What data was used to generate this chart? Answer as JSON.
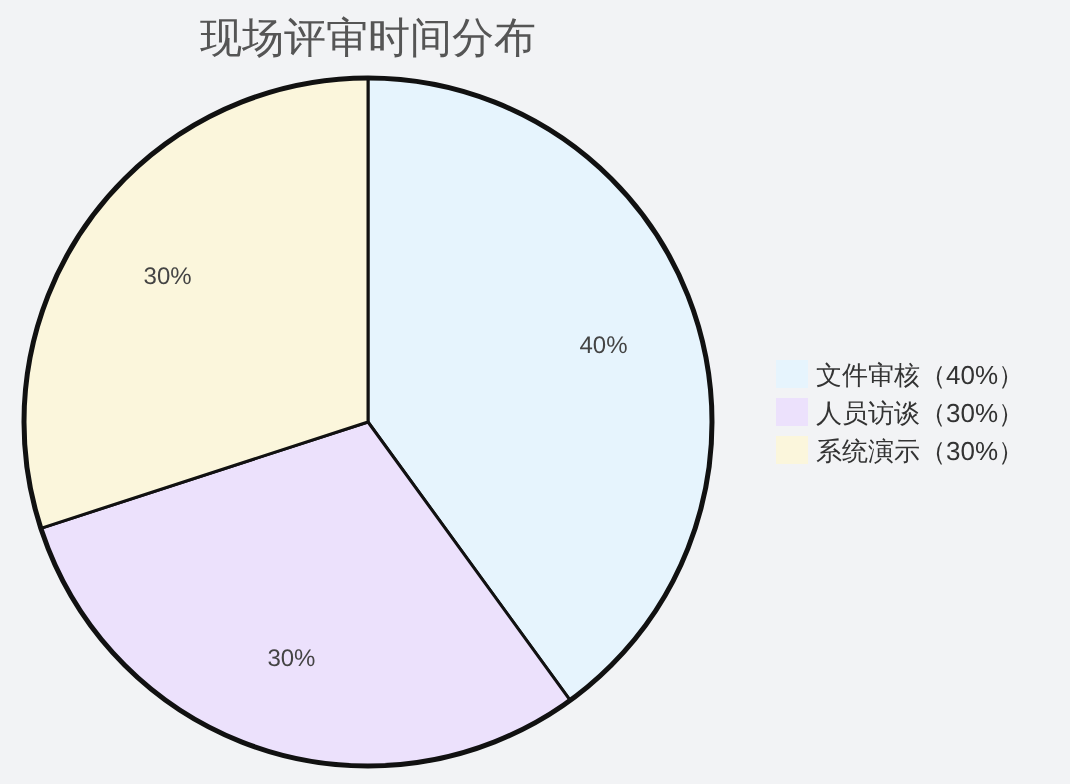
{
  "chart_data": {
    "type": "pie",
    "title": "现场评审时间分布",
    "categories": [
      "文件审核（40%）",
      "人员访谈（30%）",
      "系统演示（30%）"
    ],
    "values": [
      40,
      30,
      30
    ],
    "colors": [
      "#e6f4fd",
      "#ece1fc",
      "#fbf6dc"
    ],
    "value_labels": [
      "40%",
      "30%",
      "30%"
    ],
    "legend": "right"
  }
}
